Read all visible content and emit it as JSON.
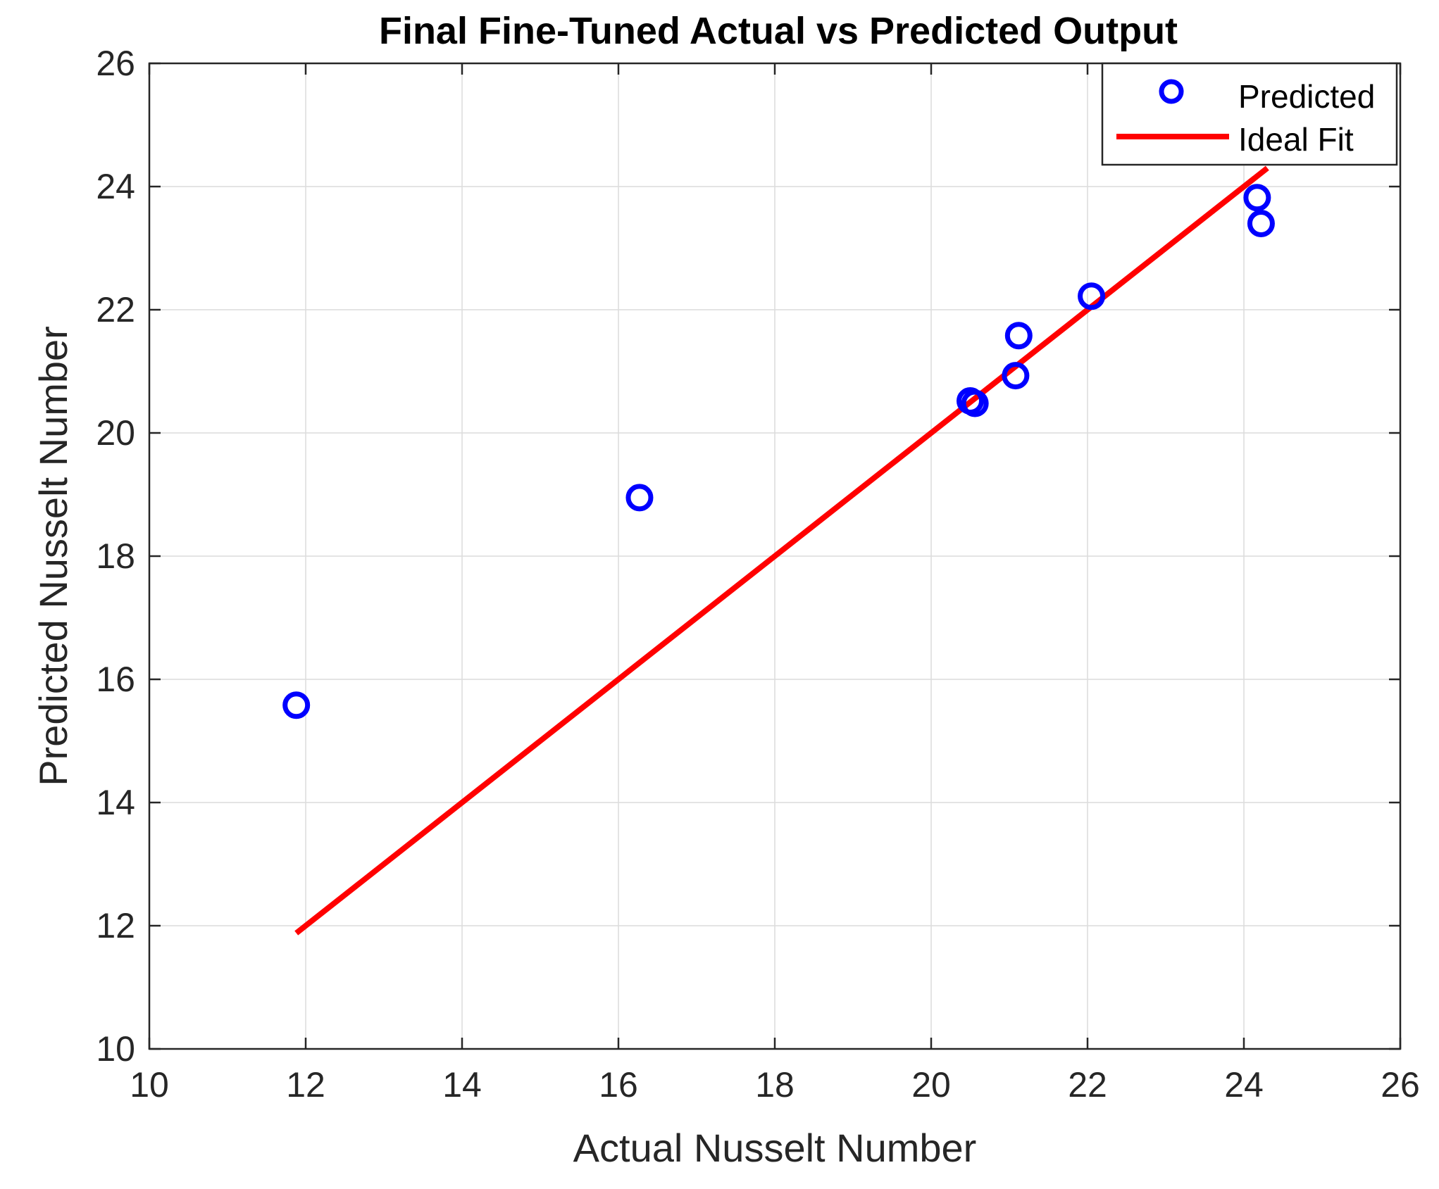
{
  "chart_data": {
    "type": "scatter",
    "title": "Final Fine-Tuned Actual vs Predicted Output",
    "xlabel": "Actual Nusselt Number",
    "ylabel": "Predicted Nusselt Number",
    "xlim": [
      10,
      26
    ],
    "ylim": [
      10,
      26
    ],
    "xticks": [
      10,
      12,
      14,
      16,
      18,
      20,
      22,
      24,
      26
    ],
    "yticks": [
      10,
      12,
      14,
      16,
      18,
      20,
      22,
      24,
      26
    ],
    "xtick_labels": [
      "10",
      "12",
      "14",
      "16",
      "18",
      "20",
      "22",
      "24",
      "26"
    ],
    "ytick_labels": [
      "10",
      "12",
      "14",
      "16",
      "18",
      "20",
      "22",
      "24",
      "26"
    ],
    "grid": true,
    "legend_position": "top-right",
    "series": [
      {
        "name": "Predicted",
        "type": "scatter",
        "marker": "circle-open",
        "color": "#0000ff",
        "points": [
          {
            "x": 11.88,
            "y": 15.58
          },
          {
            "x": 16.27,
            "y": 18.95
          },
          {
            "x": 20.5,
            "y": 20.52
          },
          {
            "x": 20.56,
            "y": 20.48
          },
          {
            "x": 21.08,
            "y": 20.93
          },
          {
            "x": 21.12,
            "y": 21.58
          },
          {
            "x": 22.05,
            "y": 22.22
          },
          {
            "x": 24.17,
            "y": 23.82
          },
          {
            "x": 24.22,
            "y": 23.4
          }
        ]
      },
      {
        "name": "Ideal Fit",
        "type": "line",
        "color": "#ff0000",
        "points": [
          {
            "x": 11.88,
            "y": 11.88
          },
          {
            "x": 24.3,
            "y": 24.3
          }
        ]
      }
    ]
  }
}
